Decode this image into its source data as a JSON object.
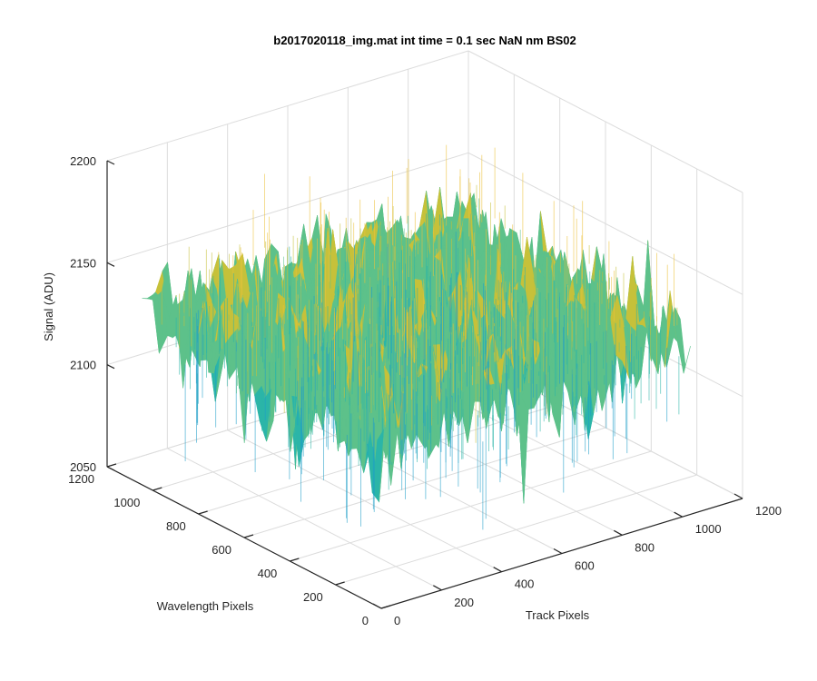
{
  "chart_data": {
    "type": "surface",
    "title": "b2017020118_img.mat int time = 0.1 sec  NaN nm BS02",
    "xlabel": "Track Pixels",
    "ylabel": "Wavelength Pixels",
    "zlabel": "Signal (ADU)",
    "xlim": [
      0,
      1200
    ],
    "ylim": [
      0,
      1200
    ],
    "zlim": [
      2050,
      2200
    ],
    "xticks": [
      "0",
      "200",
      "400",
      "600",
      "800",
      "1000",
      "1200"
    ],
    "yticks": [
      "0",
      "200",
      "400",
      "600",
      "800",
      "1000",
      "1200"
    ],
    "zticks": [
      "2050",
      "2100",
      "2150",
      "2200"
    ],
    "surface_level_range": [
      2070,
      2185
    ],
    "surface_mean": 2130,
    "colormap": "parula",
    "colors": [
      "#1f9ec8",
      "#2bb5a8",
      "#5dc18a",
      "#c6c13a",
      "#ecc23c"
    ],
    "grid": true
  }
}
